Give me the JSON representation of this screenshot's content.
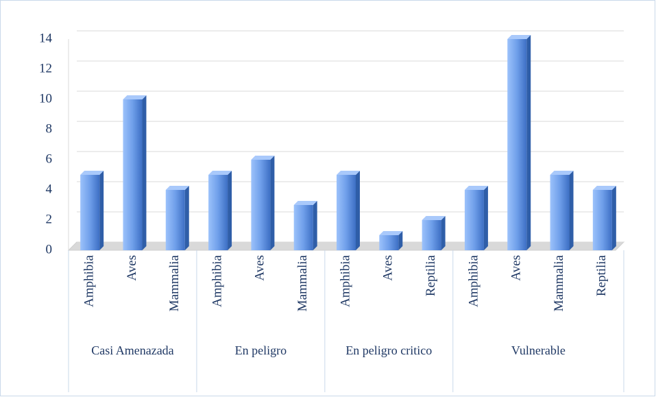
{
  "chart_data": {
    "type": "bar",
    "groups": [
      {
        "name": "Casi Amenazada",
        "categories": [
          "Amphibia",
          "Aves",
          "Mammalia"
        ],
        "values": [
          5,
          10,
          4
        ]
      },
      {
        "name": "En peligro",
        "categories": [
          "Amphibia",
          "Aves",
          "Mammalia"
        ],
        "values": [
          5,
          6,
          3
        ]
      },
      {
        "name": "En peligro critico",
        "categories": [
          "Amphibia",
          "Aves",
          "Reptilia"
        ],
        "values": [
          5,
          1,
          2
        ]
      },
      {
        "name": "Vulnerable",
        "categories": [
          "Amphibia",
          "Aves",
          "Mammalia",
          "Reptilia"
        ],
        "values": [
          4,
          14,
          5,
          4
        ]
      }
    ],
    "color": "#4f81d6",
    "ylim": [
      0,
      14
    ],
    "yticks": [
      0,
      2,
      4,
      6,
      8,
      10,
      12,
      14
    ],
    "grid": true
  }
}
